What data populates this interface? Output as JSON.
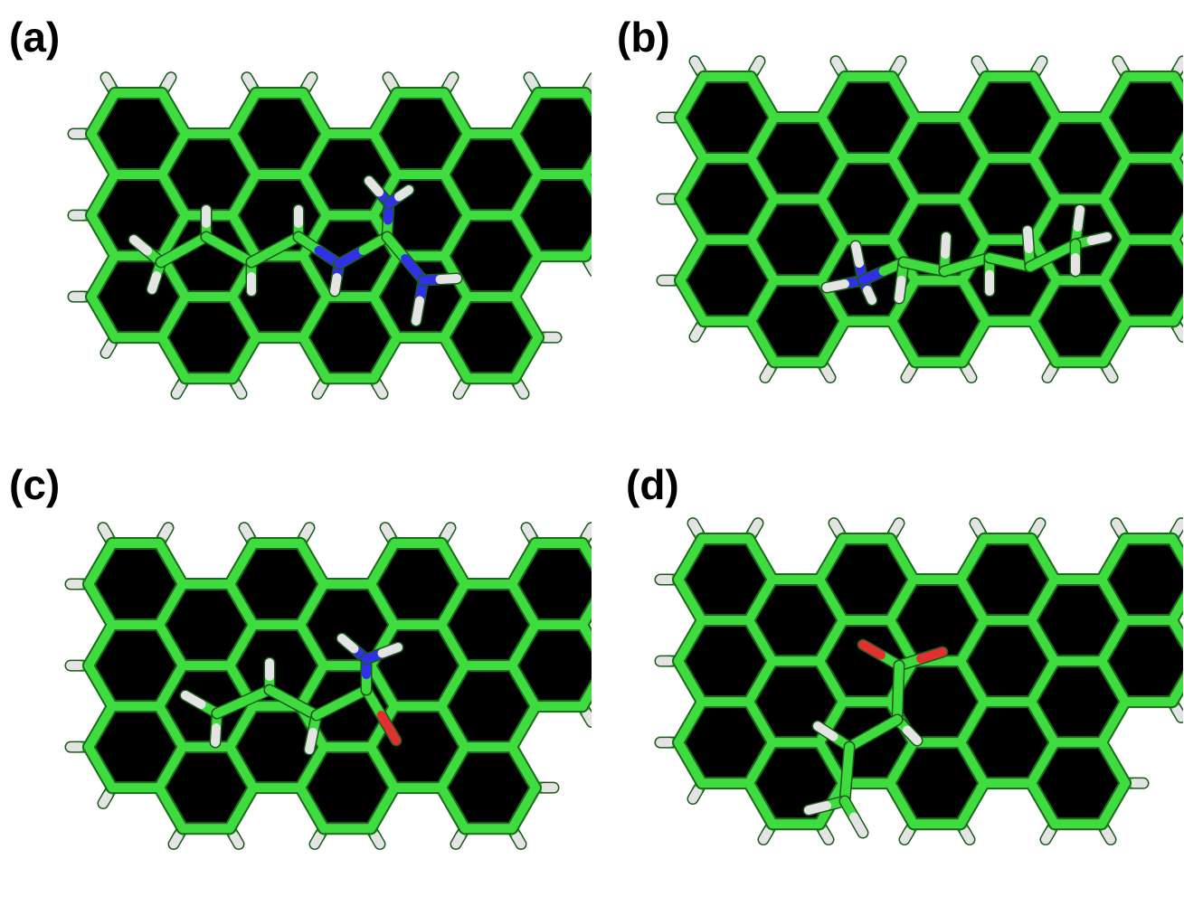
{
  "panels": [
    {
      "label": "(a)",
      "molecule": "arginine-side-chain-on-graphene"
    },
    {
      "label": "(b)",
      "molecule": "lysine-side-chain-on-graphene"
    },
    {
      "label": "(c)",
      "molecule": "glutamine-side-chain-on-graphene"
    },
    {
      "label": "(d)",
      "molecule": "glutamic-acid-side-chain-on-graphene"
    }
  ],
  "colors": {
    "carbon": "#3fdc3f",
    "hydrogen": "#e4e4e4",
    "nitrogen": "#3030e8",
    "oxygen": "#e03030",
    "ring-fill": "#000000",
    "background": "#ffffff"
  }
}
